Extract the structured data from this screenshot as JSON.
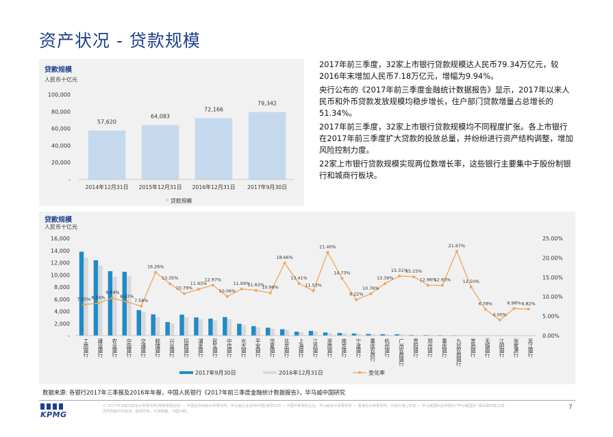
{
  "page": {
    "title": "资产状况 - 贷款规模",
    "paragraphs": [
      "2017年前三季度，32家上市银行贷款规模达人民币79.34万亿元，较2016年末增加人民币7.18万亿元，增幅为9.94%。",
      "央行公布的《2017年前三季度金融统计数据报告》显示，2017年以来人民币和外币贷款发放规模均稳步增长，住户部门贷款增量占总增长的51.34%。",
      "2017年前三季度，32家上市银行贷款规模均不同程度扩张。各上市银行在2017年前三季度扩大贷款的投放总量，并纷纷进行资产结构调整，增加风险控制力度。",
      "22家上市银行贷款规模实现两位数增长率，这些银行主要集中于股份制银行和城商行板块。"
    ],
    "source": "数据来源: 各银行2017年三季报及2016年年报，中国人民银行《2017年前三季度金融统计数据报告》，毕马威中国研究",
    "disclaimer": "© 2017毕马威华振会计师事务所(特殊普通合伙) — 中国合伙制会计师事务所，毕马威企业咨询(中国)有限公司 — 中国外商独资企业，毕马威会计师事务所 — 香港合伙制事务所，均是与瑞士实体 — 毕马威国际合作组织(\"毕马威国际\")相关联的独立成员所网络中的成员。版权所有，不得转载。中国印刷。",
    "page_number": "7",
    "logo_text": "KPMG",
    "colors": {
      "accent": "#1e3f8c",
      "bar_top": "#c5d9ee",
      "bar_2017": "#1f8bc8",
      "bar_2016": "#d9d9d9",
      "line": "#f0a45a"
    }
  },
  "chart_data": [
    {
      "type": "bar",
      "title": "贷款规模",
      "unit": "人民币十亿元",
      "categories": [
        "2014年12月31日",
        "2015年12月31日",
        "2016年12月31日",
        "2017年9月30日"
      ],
      "series": [
        {
          "name": "贷款规模",
          "values": [
            57620,
            64083,
            72166,
            79342
          ]
        }
      ],
      "value_labels": [
        "57,620",
        "64,083",
        "72,166",
        "79,342"
      ],
      "ylim": [
        0,
        100000
      ],
      "yticks": [
        0,
        20000,
        40000,
        60000,
        80000,
        100000
      ],
      "ytick_labels": [
        "-",
        "20,000",
        "40,000",
        "60,000",
        "80,000",
        "100,000"
      ],
      "legend_position": "bottom"
    },
    {
      "type": "bar+line",
      "title": "贷款规模",
      "unit": "人民币十亿元",
      "categories": [
        "工商银行",
        "建设银行",
        "农业银行",
        "中国银行",
        "交通银行",
        "邮储银行",
        "兴业银行",
        "招商银行",
        "浦发银行",
        "民生银行",
        "中信银行",
        "光大银行",
        "平安银行",
        "华夏银行",
        "北京银行",
        "上海银行",
        "江苏银行",
        "浙商银行",
        "南京银行",
        "宁波银行",
        "重庆农商行",
        "杭州银行",
        "广州农商银行",
        "贵阳银行",
        "郑州银行",
        "重庆银行",
        "九台农商银行",
        "常熟银行",
        "无锡银行",
        "江阴银行",
        "张家港行",
        "吴江银行"
      ],
      "series": [
        {
          "name": "2017年9月30日",
          "axis": "left",
          "values": [
            13800,
            12400,
            10600,
            10500,
            4200,
            3500,
            2230,
            3450,
            3000,
            2800,
            3050,
            1950,
            1560,
            1300,
            1050,
            650,
            780,
            520,
            440,
            350,
            270,
            250,
            230,
            100,
            90,
            80,
            60,
            30,
            22,
            19,
            18,
            14
          ]
        },
        {
          "name": "2016年12月31日",
          "axis": "left",
          "values": [
            12800,
            11500,
            9700,
            9800,
            3950,
            3000,
            2000,
            3050,
            2700,
            2500,
            2700,
            1750,
            1350,
            1150,
            950,
            560,
            690,
            430,
            400,
            310,
            245,
            215,
            210,
            90,
            80,
            70,
            50,
            27,
            20,
            18,
            17,
            13
          ]
        },
        {
          "name": "变化率",
          "axis": "right",
          "values": [
            7.95,
            8.34,
            9.64,
            8.67,
            7.58,
            16.26,
            13.35,
            10.79,
            11.93,
            12.97,
            10.06,
            11.99,
            11.63,
            10.98,
            18.66,
            13.41,
            11.53,
            21.4,
            14.73,
            9.22,
            10.76,
            13.39,
            15.31,
            15.15,
            12.96,
            12.93,
            21.67,
            12.5,
            6.78,
            4.0,
            6.98,
            6.82
          ]
        }
      ],
      "rate_labels": [
        "7.95%",
        "8.34%",
        "9.64%",
        "8.67%",
        "7.58%",
        "16.26%",
        "13.35%",
        "10.79%",
        "11.93%",
        "12.97%",
        "10.06%",
        "11.99%",
        "11.63%",
        "10.98%",
        "18.66%",
        "13.41%",
        "11.53%",
        "21.40%",
        "14.73%",
        "9.22%",
        "10.76%",
        "13.39%",
        "15.31%",
        "15.15%",
        "12.96%",
        "12.93%",
        "21.67%",
        "12.50%",
        "6.78%",
        "4.00%",
        "6.98%",
        "6.82%"
      ],
      "ylim_left": [
        0,
        16000
      ],
      "yticks_left": [
        0,
        2000,
        4000,
        6000,
        8000,
        10000,
        12000,
        14000,
        16000
      ],
      "ytick_labels_left": [
        "-",
        "2,000",
        "4,000",
        "6,000",
        "8,000",
        "10,000",
        "12,000",
        "14,000",
        "16,000"
      ],
      "ylim_right": [
        0,
        25
      ],
      "yticks_right": [
        0,
        5,
        10,
        15,
        20,
        25
      ],
      "ytick_labels_right": [
        "0.00%",
        "5.00%",
        "10.00%",
        "15.00%",
        "20.00%",
        "25.00%"
      ],
      "legend_position": "bottom"
    }
  ]
}
